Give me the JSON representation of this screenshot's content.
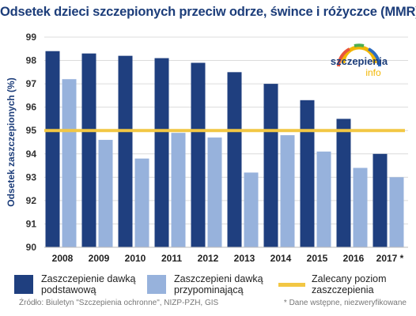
{
  "title": "Odsetek dzieci szczepionych przeciw odrze, śwince i różyczce (MMR)",
  "logo": {
    "text_main": "szczepienia",
    "text_sub": "info"
  },
  "chart_data": {
    "type": "bar",
    "ylabel": "Odsetek zaszczepionych (%)",
    "xlabel": "",
    "ylim": [
      90,
      99
    ],
    "yticks": [
      90,
      91,
      92,
      93,
      94,
      95,
      96,
      97,
      98,
      99
    ],
    "grid": true,
    "categories": [
      "2008",
      "2009",
      "2010",
      "2011",
      "2012",
      "2013",
      "2014",
      "2015",
      "2016",
      "2017 *"
    ],
    "series": [
      {
        "name": "Zaszczepienie dawką podstawową",
        "color": "#1f3f7f",
        "values": [
          98.4,
          98.3,
          98.2,
          98.1,
          97.9,
          97.5,
          97.0,
          96.3,
          95.5,
          94.0
        ]
      },
      {
        "name": "Zaszczepieni dawką przypominającą",
        "color": "#97b2dc",
        "values": [
          97.2,
          94.6,
          93.8,
          94.9,
          94.7,
          93.2,
          94.8,
          94.1,
          93.4,
          93.0
        ]
      }
    ],
    "reference_line": {
      "name": "Zalecany poziom zaszczepienia",
      "value": 95,
      "color": "#f2c744"
    },
    "legend_position": "bottom"
  },
  "legend": [
    {
      "label": "Zaszczepienie dawką\npodstawową",
      "color": "#1f3f7f",
      "shape": "box"
    },
    {
      "label": "Zaszczepieni dawką\nprzypominającą",
      "color": "#97b2dc",
      "shape": "box"
    },
    {
      "label": "Zalecany poziom\nzaszczepienia",
      "color": "#f2c744",
      "shape": "line"
    }
  ],
  "source": "Źródło: Biuletyn \"Szczepienia ochronne\", NIZP-PZH, GIS",
  "footnote": "* Dane wstępne, niezweryfikowane"
}
